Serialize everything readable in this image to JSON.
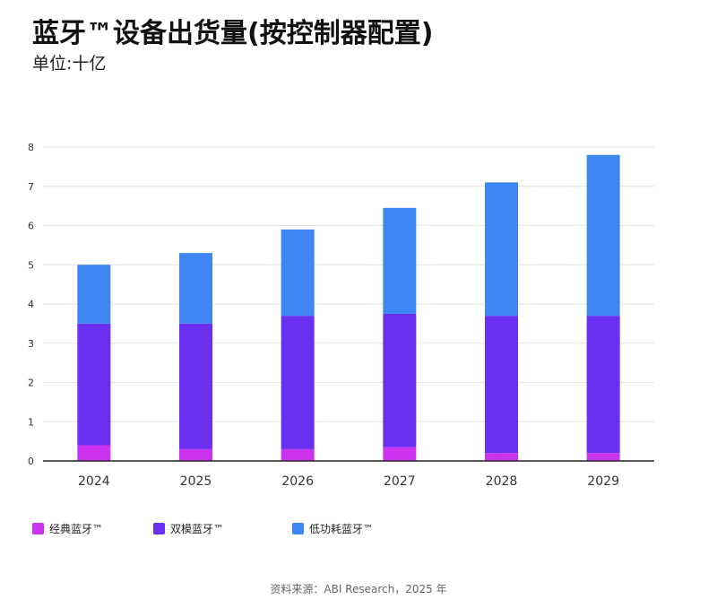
{
  "title": "蓝牙™设备出货量(按控制器配置)",
  "subtitle": "单位:十亿",
  "source": "资料来源：ABI Research，2025 年",
  "colors": {
    "classic": "#cc33ee",
    "dual": "#6b2ff0",
    "le": "#3d86f4",
    "grid": "#e3e3e3",
    "axis": "#222222",
    "tick": "#333333"
  },
  "legend": [
    {
      "name": "经典蓝牙™",
      "color": "#cc33ee"
    },
    {
      "name": "双模蓝牙™",
      "color": "#6b2ff0"
    },
    {
      "name": "低功耗蓝牙™",
      "color": "#3d86f4"
    }
  ],
  "chart_data": {
    "type": "bar",
    "stacked": true,
    "title": "蓝牙™设备出货量(按控制器配置)",
    "ylabel": "单位:十亿",
    "xlabel": "",
    "categories": [
      "2024",
      "2025",
      "2026",
      "2027",
      "2028",
      "2029"
    ],
    "ylim": [
      0,
      8
    ],
    "yticks": [
      "0",
      "1",
      "2",
      "3",
      "4",
      "5",
      "6",
      "7",
      "8"
    ],
    "grid": true,
    "legend_position": "bottom",
    "series": [
      {
        "name": "经典蓝牙™",
        "values": [
          0.4,
          0.3,
          0.3,
          0.35,
          0.2,
          0.2
        ]
      },
      {
        "name": "双模蓝牙™",
        "values": [
          3.1,
          3.2,
          3.4,
          3.4,
          3.5,
          3.5
        ]
      },
      {
        "name": "低功耗蓝牙™",
        "values": [
          1.5,
          1.8,
          2.2,
          2.7,
          3.4,
          4.1
        ]
      }
    ]
  }
}
